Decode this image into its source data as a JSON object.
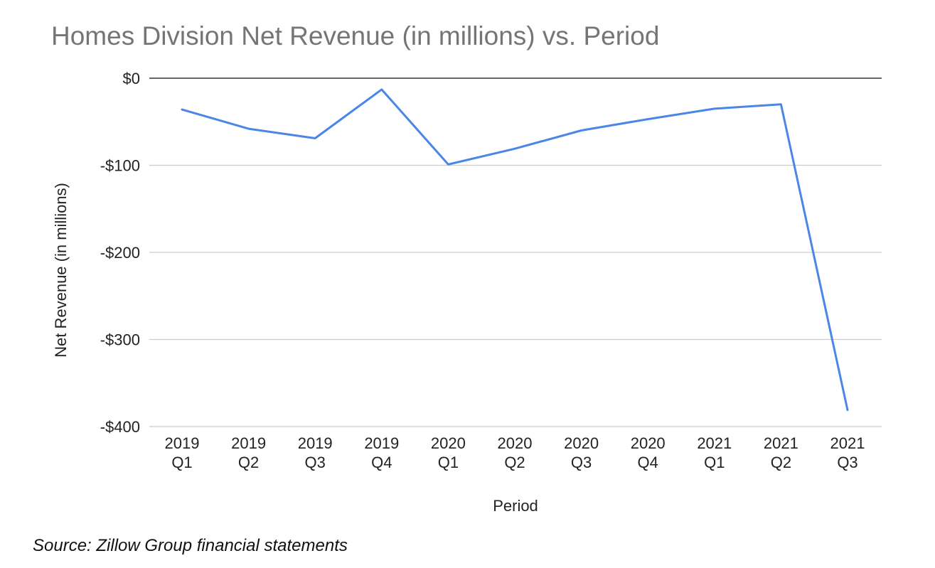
{
  "chart_data": {
    "type": "line",
    "title": "Homes Division Net Revenue (in millions) vs. Period",
    "xlabel": "Period",
    "ylabel": "Net Revenue (in millions)",
    "categories": [
      [
        "2019",
        "Q1"
      ],
      [
        "2019",
        "Q2"
      ],
      [
        "2019",
        "Q3"
      ],
      [
        "2019",
        "Q4"
      ],
      [
        "2020",
        "Q1"
      ],
      [
        "2020",
        "Q2"
      ],
      [
        "2020",
        "Q3"
      ],
      [
        "2020",
        "Q4"
      ],
      [
        "2021",
        "Q1"
      ],
      [
        "2021",
        "Q2"
      ],
      [
        "2021",
        "Q3"
      ]
    ],
    "series": [
      {
        "values": [
          -36,
          -58,
          -69,
          -13,
          -99,
          -81,
          -60,
          -47,
          -35,
          -30,
          -381
        ],
        "color": "#4a86e8"
      }
    ],
    "ylim": [
      -400,
      0
    ],
    "yticks": [
      0,
      -100,
      -200,
      -300,
      -400
    ],
    "ytick_labels": [
      "$0",
      "-$100",
      "-$200",
      "-$300",
      "-$400"
    ],
    "grid": true,
    "zero_line_color": "#333333",
    "grid_color": "#cccccc"
  },
  "source": "Source: Zillow Group financial statements"
}
